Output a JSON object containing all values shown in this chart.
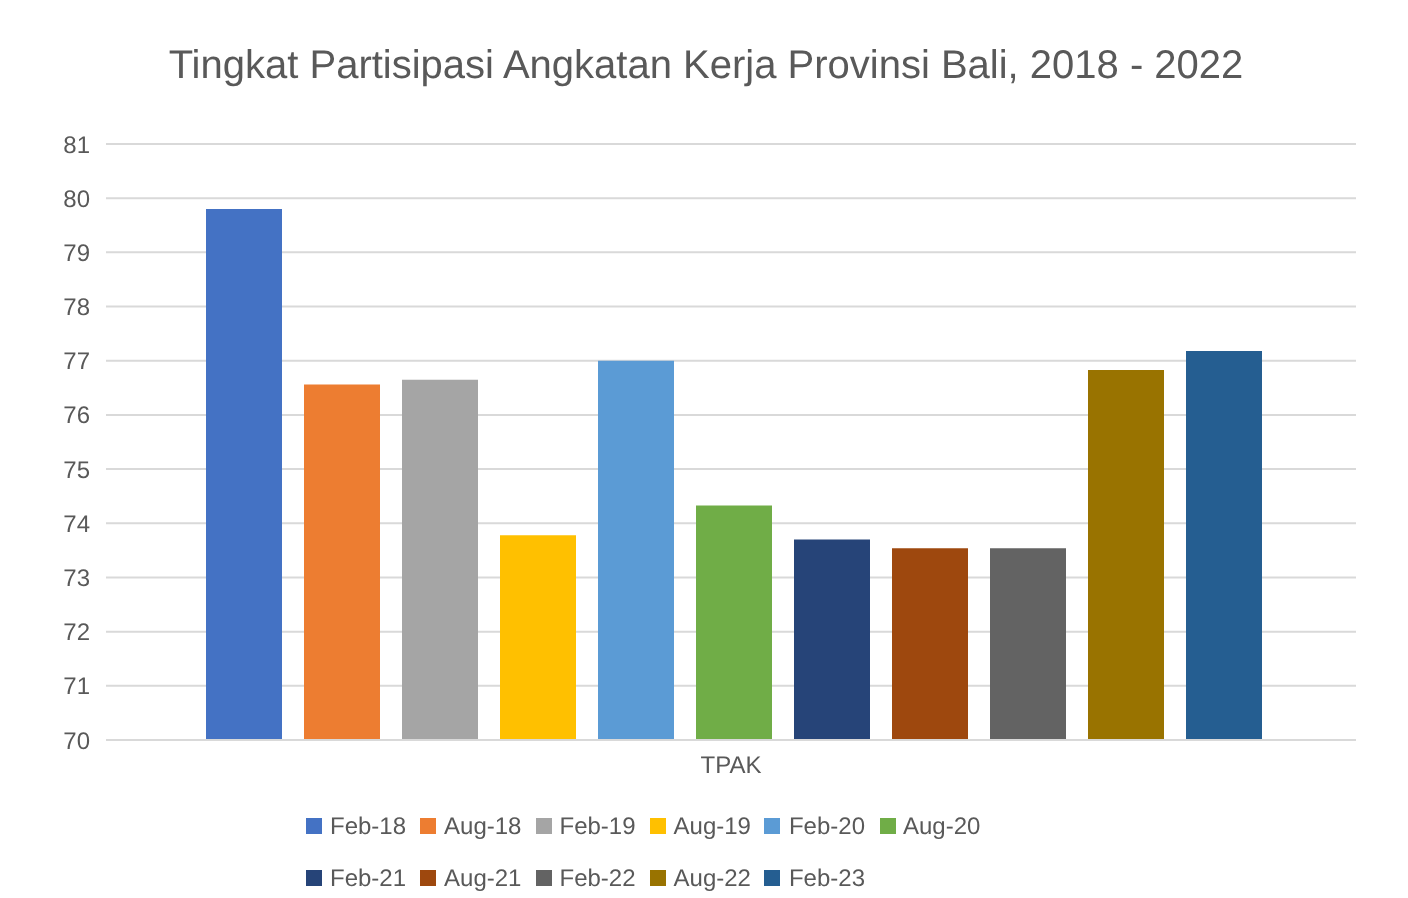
{
  "chart_data": {
    "type": "bar",
    "title": "Tingkat Partisipasi Angkatan Kerja Provinsi Bali, 2018 - 2022",
    "categories": [
      "TPAK"
    ],
    "series": [
      {
        "name": "Feb-18",
        "color": "#4472c4",
        "values": [
          79.8
        ]
      },
      {
        "name": "Aug-18",
        "color": "#ed7d31",
        "values": [
          76.56
        ]
      },
      {
        "name": "Feb-19",
        "color": "#a5a5a5",
        "values": [
          76.65
        ]
      },
      {
        "name": "Aug-19",
        "color": "#ffc000",
        "values": [
          73.78
        ]
      },
      {
        "name": "Feb-20",
        "color": "#5b9bd5",
        "values": [
          77.0
        ]
      },
      {
        "name": "Aug-20",
        "color": "#70ad47",
        "values": [
          74.33
        ]
      },
      {
        "name": "Feb-21",
        "color": "#264478",
        "values": [
          73.7
        ]
      },
      {
        "name": "Aug-21",
        "color": "#9e480e",
        "values": [
          73.54
        ]
      },
      {
        "name": "Feb-22",
        "color": "#636363",
        "values": [
          73.54
        ]
      },
      {
        "name": "Aug-22",
        "color": "#997300",
        "values": [
          76.83
        ]
      },
      {
        "name": "Feb-23",
        "color": "#255e91",
        "values": [
          77.18
        ]
      }
    ],
    "ylim": [
      70,
      81
    ],
    "yticks": [
      70,
      71,
      72,
      73,
      74,
      75,
      76,
      77,
      78,
      79,
      80,
      81
    ],
    "grid": "y",
    "legend": "bottom"
  }
}
